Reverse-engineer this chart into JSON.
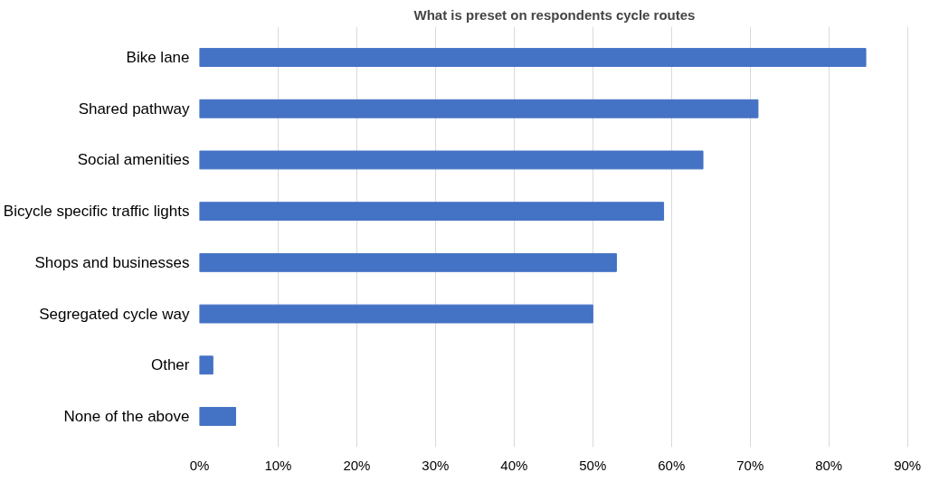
{
  "chart_data": {
    "type": "bar",
    "orientation": "horizontal",
    "title": "What is preset on respondents cycle routes",
    "categories": [
      "Bike lane",
      "Shared pathway",
      "Social amenities",
      "Bicycle specific traffic lights",
      "Shops and businesses",
      "Segregated cycle way",
      "Other",
      "None of the above"
    ],
    "values": [
      84.7,
      71,
      64,
      59,
      53,
      50,
      1.7,
      4.6
    ],
    "color": "#4472c4",
    "xlim": [
      0,
      90
    ],
    "xticks": [
      {
        "value": 0,
        "label": "0%"
      },
      {
        "value": 10,
        "label": "10%"
      },
      {
        "value": 20,
        "label": "20%"
      },
      {
        "value": 30,
        "label": "30%"
      },
      {
        "value": 40,
        "label": "40%"
      },
      {
        "value": 50,
        "label": "50%"
      },
      {
        "value": 60,
        "label": "60%"
      },
      {
        "value": 70,
        "label": "70%"
      },
      {
        "value": 80,
        "label": "80%"
      },
      {
        "value": 90,
        "label": "90%"
      }
    ],
    "grid": "x"
  }
}
